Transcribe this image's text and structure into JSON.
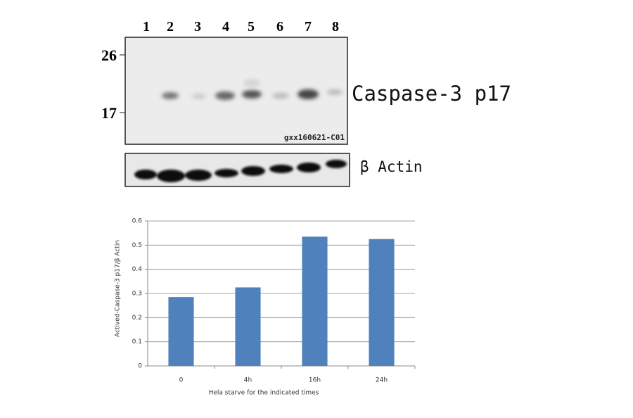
{
  "blot": {
    "lanes": [
      "1",
      "2",
      "3",
      "4",
      "5",
      "6",
      "7",
      "8"
    ],
    "markers": [
      "26",
      "17"
    ],
    "band_label": "Caspase-3 p17",
    "blot_id": "gxx160621-C01",
    "control_label": "β Actin"
  },
  "chart_data": {
    "type": "bar",
    "ylabel": "Actived-Caspase-3 p17/β Actin",
    "xlabel": "Hela starve for the indicated times",
    "categories": [
      "0",
      "4h",
      "16h",
      "24h"
    ],
    "values": [
      0.285,
      0.325,
      0.535,
      0.525
    ],
    "color": "#4f81bd",
    "ylim": [
      0,
      0.6
    ],
    "yticks": [
      0,
      0.1,
      0.2,
      0.3,
      0.4,
      0.5,
      0.6
    ],
    "grid": true
  }
}
